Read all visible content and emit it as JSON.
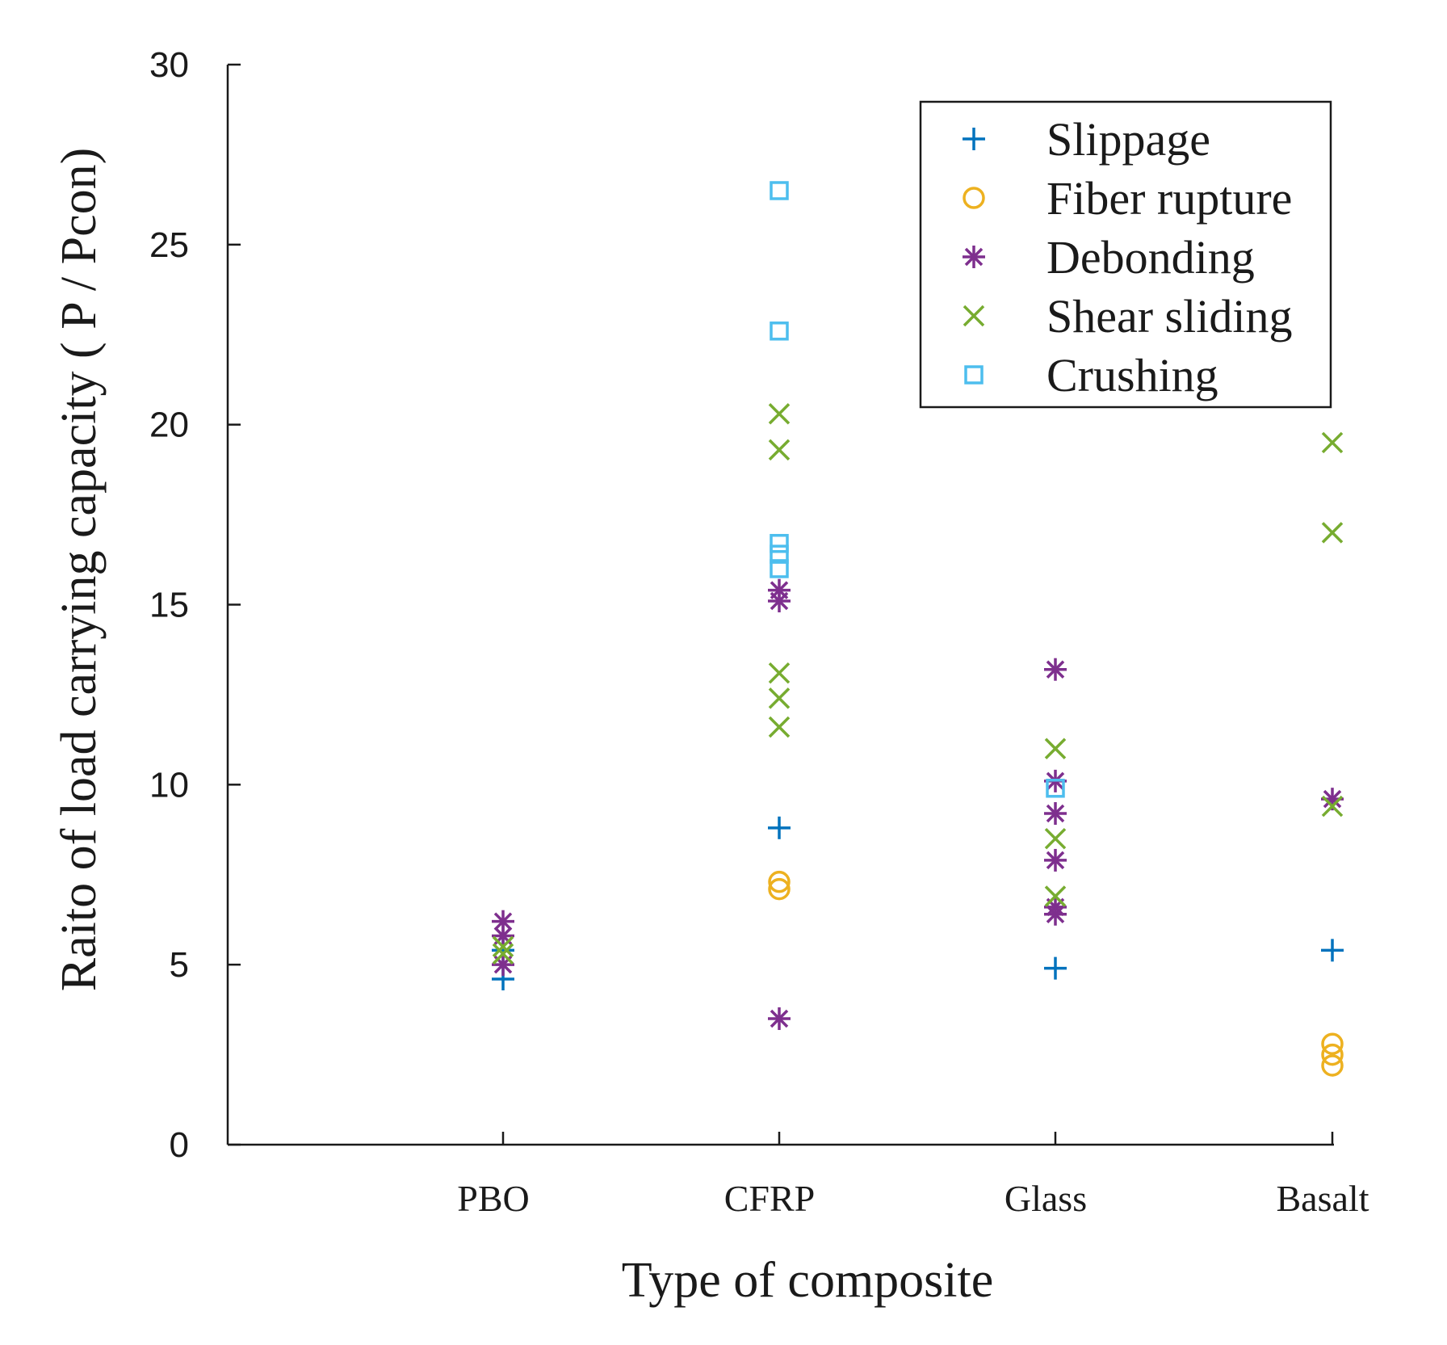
{
  "chart_data": {
    "type": "scatter",
    "title": "",
    "xlabel": "Type of composite",
    "ylabel": "Raito of load carrying capacity  ( P / Pcon)",
    "categories": [
      "PBO",
      "CFRP",
      "Glass",
      "Basalt"
    ],
    "ylim": [
      0,
      30
    ],
    "yticks": [
      0,
      5,
      10,
      15,
      20,
      25,
      30
    ],
    "grid": false,
    "legend_position": "top-right",
    "series": [
      {
        "name": "Slippage",
        "marker": "plus",
        "color": "#0072BD",
        "points": [
          {
            "category": "PBO",
            "y": 4.6
          },
          {
            "category": "PBO",
            "y": 5.4
          },
          {
            "category": "CFRP",
            "y": 8.8
          },
          {
            "category": "Glass",
            "y": 4.9
          },
          {
            "category": "Basalt",
            "y": 5.4
          }
        ]
      },
      {
        "name": "Fiber rupture",
        "marker": "circle",
        "color": "#EDB120",
        "points": [
          {
            "category": "CFRP",
            "y": 7.3
          },
          {
            "category": "CFRP",
            "y": 7.1
          },
          {
            "category": "Basalt",
            "y": 2.8
          },
          {
            "category": "Basalt",
            "y": 2.5
          },
          {
            "category": "Basalt",
            "y": 2.2
          }
        ]
      },
      {
        "name": "Debonding",
        "marker": "asterisk",
        "color": "#7E2F8E",
        "points": [
          {
            "category": "PBO",
            "y": 6.2
          },
          {
            "category": "PBO",
            "y": 5.8
          },
          {
            "category": "PBO",
            "y": 5.0
          },
          {
            "category": "CFRP",
            "y": 15.4
          },
          {
            "category": "CFRP",
            "y": 15.1
          },
          {
            "category": "CFRP",
            "y": 3.5
          },
          {
            "category": "Glass",
            "y": 13.2
          },
          {
            "category": "Glass",
            "y": 10.1
          },
          {
            "category": "Glass",
            "y": 9.2
          },
          {
            "category": "Glass",
            "y": 7.9
          },
          {
            "category": "Glass",
            "y": 6.6
          },
          {
            "category": "Glass",
            "y": 6.4
          },
          {
            "category": "Basalt",
            "y": 9.6
          }
        ]
      },
      {
        "name": "Shear sliding",
        "marker": "cross",
        "color": "#77AC30",
        "points": [
          {
            "category": "PBO",
            "y": 5.5
          },
          {
            "category": "PBO",
            "y": 5.3
          },
          {
            "category": "CFRP",
            "y": 20.3
          },
          {
            "category": "CFRP",
            "y": 19.3
          },
          {
            "category": "CFRP",
            "y": 13.1
          },
          {
            "category": "CFRP",
            "y": 12.4
          },
          {
            "category": "CFRP",
            "y": 11.6
          },
          {
            "category": "Glass",
            "y": 11.0
          },
          {
            "category": "Glass",
            "y": 8.5
          },
          {
            "category": "Glass",
            "y": 6.9
          },
          {
            "category": "Basalt",
            "y": 19.5
          },
          {
            "category": "Basalt",
            "y": 17.0
          },
          {
            "category": "Basalt",
            "y": 9.4
          }
        ]
      },
      {
        "name": "Crushing",
        "marker": "square",
        "color": "#4DBEEE",
        "points": [
          {
            "category": "CFRP",
            "y": 26.5
          },
          {
            "category": "CFRP",
            "y": 22.6
          },
          {
            "category": "CFRP",
            "y": 16.7
          },
          {
            "category": "CFRP",
            "y": 16.4
          },
          {
            "category": "CFRP",
            "y": 16.0
          },
          {
            "category": "Glass",
            "y": 9.9
          }
        ]
      }
    ]
  }
}
